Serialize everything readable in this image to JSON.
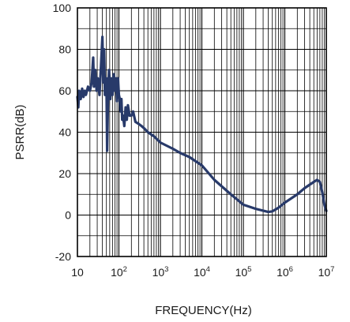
{
  "chart_data": {
    "type": "line",
    "title": "",
    "xlabel": "FREQUENCY(Hz)",
    "ylabel": "PSRR(dB)",
    "x_scale": "log",
    "xlim": [
      10,
      10000000
    ],
    "ylim": [
      -20,
      100
    ],
    "grid": true,
    "x_ticks": [
      {
        "base": "10",
        "exp": "",
        "value": 10
      },
      {
        "base": "10",
        "exp": "2",
        "value": 100
      },
      {
        "base": "10",
        "exp": "3",
        "value": 1000
      },
      {
        "base": "10",
        "exp": "4",
        "value": 10000
      },
      {
        "base": "10",
        "exp": "5",
        "value": 100000
      },
      {
        "base": "10",
        "exp": "6",
        "value": 1000000
      },
      {
        "base": "10",
        "exp": "7",
        "value": 10000000
      }
    ],
    "y_ticks": [
      "-20",
      "0",
      "20",
      "40",
      "60",
      "80",
      "100"
    ],
    "colors": {
      "line": "#283a6a",
      "grid": "#000000",
      "frame": "#000000"
    },
    "series": [
      {
        "name": "",
        "points": [
          [
            10,
            57
          ],
          [
            10.5,
            52
          ],
          [
            11,
            60
          ],
          [
            12,
            56
          ],
          [
            13,
            61
          ],
          [
            14,
            57
          ],
          [
            15,
            60
          ],
          [
            16,
            58
          ],
          [
            18,
            62
          ],
          [
            20,
            60
          ],
          [
            22,
            64
          ],
          [
            24,
            76
          ],
          [
            25,
            62
          ],
          [
            27,
            70
          ],
          [
            29,
            60
          ],
          [
            31,
            66
          ],
          [
            34,
            58
          ],
          [
            37,
            72
          ],
          [
            40,
            86
          ],
          [
            42,
            64
          ],
          [
            44,
            80
          ],
          [
            46,
            58
          ],
          [
            50,
            66
          ],
          [
            52,
            31
          ],
          [
            55,
            60
          ],
          [
            58,
            70
          ],
          [
            62,
            56
          ],
          [
            66,
            66
          ],
          [
            70,
            58
          ],
          [
            75,
            68
          ],
          [
            80,
            60
          ],
          [
            85,
            66
          ],
          [
            90,
            55
          ],
          [
            95,
            66
          ],
          [
            100,
            58
          ],
          [
            105,
            56
          ],
          [
            110,
            50
          ],
          [
            115,
            56
          ],
          [
            120,
            46
          ],
          [
            126,
            48
          ],
          [
            135,
            43
          ],
          [
            145,
            52
          ],
          [
            155,
            46
          ],
          [
            165,
            53
          ],
          [
            180,
            48
          ],
          [
            200,
            48
          ],
          [
            220,
            50
          ],
          [
            250,
            45
          ],
          [
            300,
            44
          ],
          [
            350,
            43
          ],
          [
            400,
            42
          ],
          [
            500,
            40
          ],
          [
            700,
            38
          ],
          [
            1000,
            35
          ],
          [
            2000,
            32
          ],
          [
            3000,
            30
          ],
          [
            5000,
            28
          ],
          [
            10000,
            24
          ],
          [
            20000,
            17
          ],
          [
            50000,
            10
          ],
          [
            100000,
            5
          ],
          [
            200000,
            3
          ],
          [
            400000,
            1.5
          ],
          [
            500000,
            1.8
          ],
          [
            700000,
            3.5
          ],
          [
            1000000,
            6
          ],
          [
            2000000,
            10
          ],
          [
            3000000,
            13
          ],
          [
            5000000,
            16
          ],
          [
            6000000,
            17
          ],
          [
            7000000,
            16
          ],
          [
            8000000,
            11
          ],
          [
            9000000,
            5
          ],
          [
            10000000,
            2
          ]
        ]
      }
    ]
  }
}
